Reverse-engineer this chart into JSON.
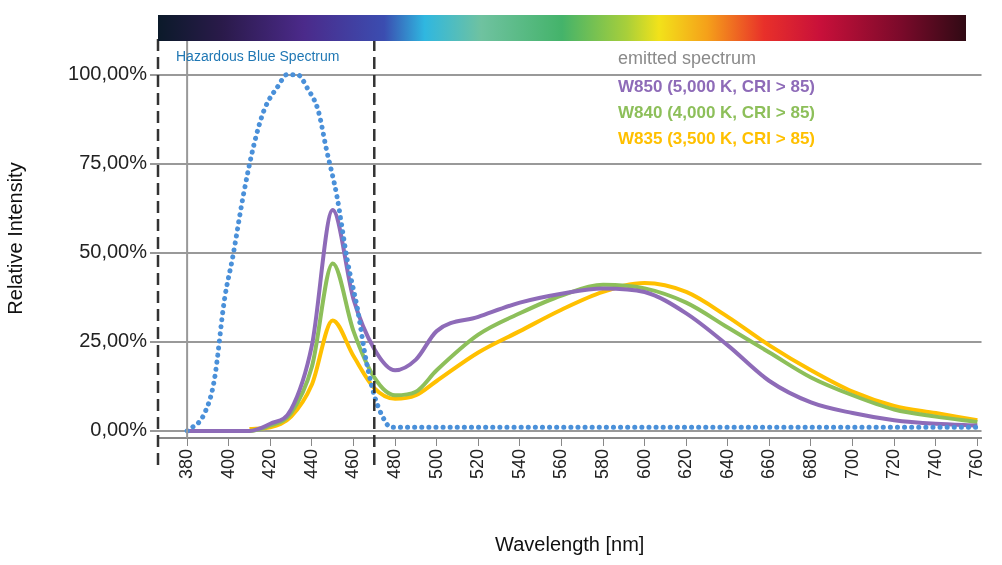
{
  "chart_data": {
    "type": "line",
    "xlabel": "Wavelength [nm]",
    "ylabel": "Relative Intensity",
    "legend_title": "emitted spectrum",
    "legend": "top right",
    "grid": "y",
    "marker": "none",
    "xlim": [
      366,
      762
    ],
    "xticks": [
      380,
      400,
      420,
      440,
      460,
      480,
      500,
      520,
      540,
      560,
      580,
      600,
      620,
      640,
      660,
      680,
      700,
      720,
      740,
      760
    ],
    "ylim": [
      -2,
      110
    ],
    "yticks": [
      {
        "value": 0,
        "label": "0,00%"
      },
      {
        "value": 25,
        "label": "25,00%"
      },
      {
        "value": 50,
        "label": "50,00%"
      },
      {
        "value": 75,
        "label": "75,00%"
      },
      {
        "value": 100,
        "label": "100,00%"
      }
    ],
    "annotations": [
      "Hazardous Blue Spectrum"
    ],
    "ref_lines": [
      {
        "axis": "x",
        "value": 380,
        "color": "#999999",
        "line_style": "solid"
      },
      {
        "axis": "x",
        "value": 366,
        "color": "#333333",
        "line_style": "dashed"
      },
      {
        "axis": "x",
        "value": 470,
        "color": "#333333",
        "line_style": "dashed"
      }
    ],
    "series": [
      {
        "color": "#4a90d9",
        "line_style": "dotted",
        "x": [
          380,
          388,
          393,
          398,
          402,
          407,
          412,
          417,
          424,
          428,
          433,
          438,
          443,
          447,
          452,
          457,
          462,
          466,
          470,
          474,
          478,
          490,
          520,
          560,
          600,
          640,
          680,
          720,
          760
        ],
        "values": [
          0,
          4.5,
          14,
          37,
          49,
          66,
          80,
          90,
          97,
          100,
          100,
          96,
          90,
          79,
          66,
          48,
          34,
          20,
          10,
          4,
          1,
          1,
          1,
          1,
          1,
          1,
          1,
          1,
          1
        ]
      },
      {
        "name": "W850 (5,000 K, CRI > 85)",
        "color": "#8e6bb8",
        "line_style": "solid",
        "x": [
          380,
          410,
          420,
          430,
          440,
          450,
          460,
          470,
          480,
          490,
          500,
          520,
          540,
          560,
          580,
          600,
          620,
          640,
          660,
          680,
          700,
          720,
          740,
          760
        ],
        "values": [
          0,
          0,
          2,
          6,
          24,
          62,
          37,
          23,
          17,
          20,
          28,
          32,
          36,
          38.5,
          40,
          39,
          33,
          24,
          14,
          8,
          5,
          3,
          2,
          1.5
        ]
      },
      {
        "name": "W840 (4,000 K, CRI > 85)",
        "color": "#8dbf5a",
        "line_style": "solid",
        "x": [
          380,
          410,
          420,
          430,
          440,
          450,
          460,
          470,
          480,
          490,
          500,
          520,
          540,
          560,
          580,
          600,
          620,
          640,
          660,
          680,
          700,
          720,
          740,
          760
        ],
        "values": [
          0,
          0,
          1.5,
          5,
          18,
          47,
          28,
          15,
          10,
          11,
          17,
          27,
          33,
          38,
          41,
          40,
          36,
          29,
          22,
          15,
          10,
          6,
          4,
          2.5
        ]
      },
      {
        "name": "W835 (3,500 K, CRI > 85)",
        "color": "#ffc000",
        "line_style": "solid",
        "x": [
          410,
          420,
          430,
          440,
          450,
          460,
          470,
          480,
          490,
          500,
          520,
          540,
          560,
          580,
          600,
          620,
          640,
          660,
          680,
          700,
          720,
          740,
          760
        ],
        "values": [
          0.5,
          1,
          4,
          13,
          31,
          21,
          12,
          9,
          10,
          14,
          22,
          28,
          34,
          39,
          41.5,
          39,
          32,
          24,
          17,
          11,
          7,
          5,
          3
        ]
      }
    ]
  }
}
